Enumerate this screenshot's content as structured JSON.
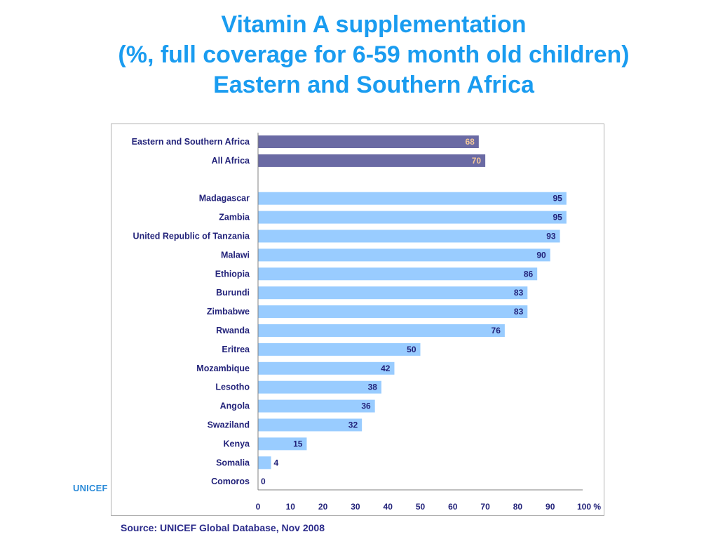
{
  "title": {
    "line1": "Vitamin A supplementation",
    "line2": "(%, full coverage for 6-59 month old children)",
    "line3": "Eastern and Southern Africa"
  },
  "source": "Source: UNICEF Global Database, Nov 2008",
  "logo_text": "UNICEF",
  "colors": {
    "title": "#1a9cf0",
    "aggregate_bar": "#6a6aa4",
    "aggregate_value": "#f4c89a",
    "country_bar": "#99ccff",
    "label_text": "#23237a",
    "axis": "#808080"
  },
  "chart_data": {
    "type": "bar",
    "orientation": "horizontal",
    "title": "Vitamin A supplementation (%, full coverage for 6-59 month old children) Eastern and Southern Africa",
    "xlabel": "",
    "ylabel": "",
    "xlim": [
      0,
      100
    ],
    "x_ticks": [
      "0",
      "10",
      "20",
      "30",
      "40",
      "50",
      "60",
      "70",
      "80",
      "90",
      "100 %"
    ],
    "grid": false,
    "legend": "none",
    "groups": [
      {
        "kind": "aggregate",
        "categories": [
          "Eastern and Southern Africa",
          "All Africa"
        ],
        "values": [
          68,
          70
        ]
      },
      {
        "kind": "country",
        "categories": [
          "Madagascar",
          "Zambia",
          "United Republic of Tanzania",
          "Malawi",
          "Ethiopia",
          "Burundi",
          "Zimbabwe",
          "Rwanda",
          "Eritrea",
          "Mozambique",
          "Lesotho",
          "Angola",
          "Swaziland",
          "Kenya",
          "Somalia",
          "Comoros"
        ],
        "values": [
          95,
          95,
          93,
          90,
          86,
          83,
          83,
          76,
          50,
          42,
          38,
          36,
          32,
          15,
          4,
          0
        ]
      }
    ]
  }
}
